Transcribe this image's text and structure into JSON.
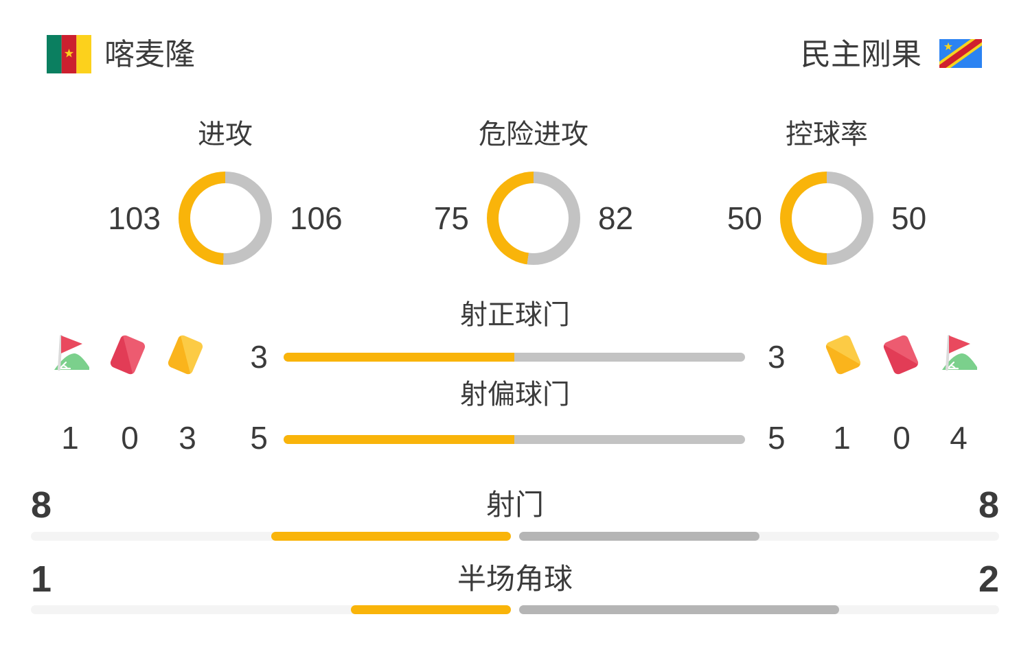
{
  "header": {
    "home_team": {
      "name": "喀麦隆",
      "flag_icon": "cameroon-flag-icon"
    },
    "away_team": {
      "name": "民主刚果",
      "flag_icon": "dr-congo-flag-icon"
    }
  },
  "colors": {
    "home_accent": "#F9B40A",
    "away_donut_gray": "#C3C3C3",
    "away_bar_gray": "#B5B5B5",
    "bar_track": "#F4F4F4",
    "text": "#3B3B3B",
    "red_card": "#E8435C",
    "yellow_card": "#FBBE2E",
    "corner_flag_red": "#E9495E",
    "corner_flag_green": "#7BD08C"
  },
  "donut_charts": [
    {
      "label": "进攻",
      "home": 103,
      "away": 106
    },
    {
      "label": "危险进攻",
      "home": 75,
      "away": 82
    },
    {
      "label": "控球率",
      "home": 50,
      "away": 50
    }
  ],
  "duel_bars": [
    {
      "label": "射正球门",
      "home": 3,
      "away": 3
    },
    {
      "label": "射偏球门",
      "home": 5,
      "away": 5
    }
  ],
  "events": {
    "home": [
      {
        "icon": "corner-flag-icon",
        "count": 1
      },
      {
        "icon": "red-card-icon",
        "count": 0
      },
      {
        "icon": "yellow-card-icon",
        "count": 3
      }
    ],
    "away": [
      {
        "icon": "yellow-card-icon",
        "count": 1
      },
      {
        "icon": "red-card-icon",
        "count": 0
      },
      {
        "icon": "corner-flag-icon",
        "count": 4
      }
    ]
  },
  "full_bars": [
    {
      "label": "射门",
      "home": 8,
      "away": 8
    },
    {
      "label": "半场角球",
      "home": 1,
      "away": 2
    }
  ],
  "chart_data": [
    {
      "type": "pie",
      "variant": "donut",
      "title": "进攻",
      "categories": [
        "喀麦隆",
        "民主刚果"
      ],
      "values": [
        103,
        106
      ],
      "colors": [
        "#F9B40A",
        "#C3C3C3"
      ],
      "labels_position": "sides"
    },
    {
      "type": "pie",
      "variant": "donut",
      "title": "危险进攻",
      "categories": [
        "喀麦隆",
        "民主刚果"
      ],
      "values": [
        75,
        82
      ],
      "colors": [
        "#F9B40A",
        "#C3C3C3"
      ],
      "labels_position": "sides"
    },
    {
      "type": "pie",
      "variant": "donut",
      "title": "控球率",
      "categories": [
        "喀麦隆",
        "民主刚果"
      ],
      "values": [
        50,
        50
      ],
      "colors": [
        "#F9B40A",
        "#C3C3C3"
      ],
      "labels_position": "sides"
    },
    {
      "type": "bar",
      "title": "射正球门",
      "categories": [
        "喀麦隆",
        "民主刚果"
      ],
      "values": [
        3,
        3
      ],
      "colors": [
        "#F9B40A",
        "#C3C3C3"
      ],
      "orientation": "horizontal-split"
    },
    {
      "type": "bar",
      "title": "射偏球门",
      "categories": [
        "喀麦隆",
        "民主刚果"
      ],
      "values": [
        5,
        5
      ],
      "colors": [
        "#F9B40A",
        "#C3C3C3"
      ],
      "orientation": "horizontal-split"
    },
    {
      "type": "bar",
      "title": "射门",
      "categories": [
        "喀麦隆",
        "民主刚果"
      ],
      "values": [
        8,
        8
      ],
      "colors": [
        "#F9B40A",
        "#B5B5B5"
      ],
      "orientation": "center-out"
    },
    {
      "type": "bar",
      "title": "半场角球",
      "categories": [
        "喀麦隆",
        "民主刚果"
      ],
      "values": [
        1,
        2
      ],
      "colors": [
        "#F9B40A",
        "#B5B5B5"
      ],
      "orientation": "center-out"
    }
  ]
}
